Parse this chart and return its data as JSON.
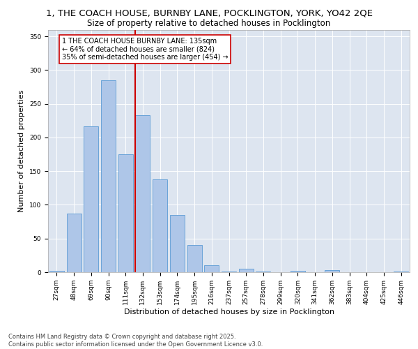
{
  "title_line1": "1, THE COACH HOUSE, BURNBY LANE, POCKLINGTON, YORK, YO42 2QE",
  "title_line2": "Size of property relative to detached houses in Pocklington",
  "xlabel": "Distribution of detached houses by size in Pocklington",
  "ylabel": "Number of detached properties",
  "categories": [
    "27sqm",
    "48sqm",
    "69sqm",
    "90sqm",
    "111sqm",
    "132sqm",
    "153sqm",
    "174sqm",
    "195sqm",
    "216sqm",
    "237sqm",
    "257sqm",
    "278sqm",
    "299sqm",
    "320sqm",
    "341sqm",
    "362sqm",
    "383sqm",
    "404sqm",
    "425sqm",
    "446sqm"
  ],
  "values": [
    2,
    87,
    217,
    285,
    175,
    233,
    138,
    85,
    40,
    10,
    1,
    5,
    1,
    0,
    2,
    0,
    3,
    0,
    0,
    0,
    1
  ],
  "bar_color": "#aec6e8",
  "bar_edge_color": "#5b9bd5",
  "vline_color": "#cc0000",
  "vline_x_index": 5,
  "annotation_text": "1 THE COACH HOUSE BURNBY LANE: 135sqm\n← 64% of detached houses are smaller (824)\n35% of semi-detached houses are larger (454) →",
  "annotation_box_color": "white",
  "annotation_box_edge_color": "#cc0000",
  "ylim": [
    0,
    360
  ],
  "yticks": [
    0,
    50,
    100,
    150,
    200,
    250,
    300,
    350
  ],
  "background_color": "#dde5f0",
  "footer_text": "Contains HM Land Registry data © Crown copyright and database right 2025.\nContains public sector information licensed under the Open Government Licence v3.0.",
  "title_fontsize": 9.5,
  "subtitle_fontsize": 8.5,
  "axis_label_fontsize": 8,
  "tick_fontsize": 6.5,
  "annotation_fontsize": 7,
  "footer_fontsize": 6
}
